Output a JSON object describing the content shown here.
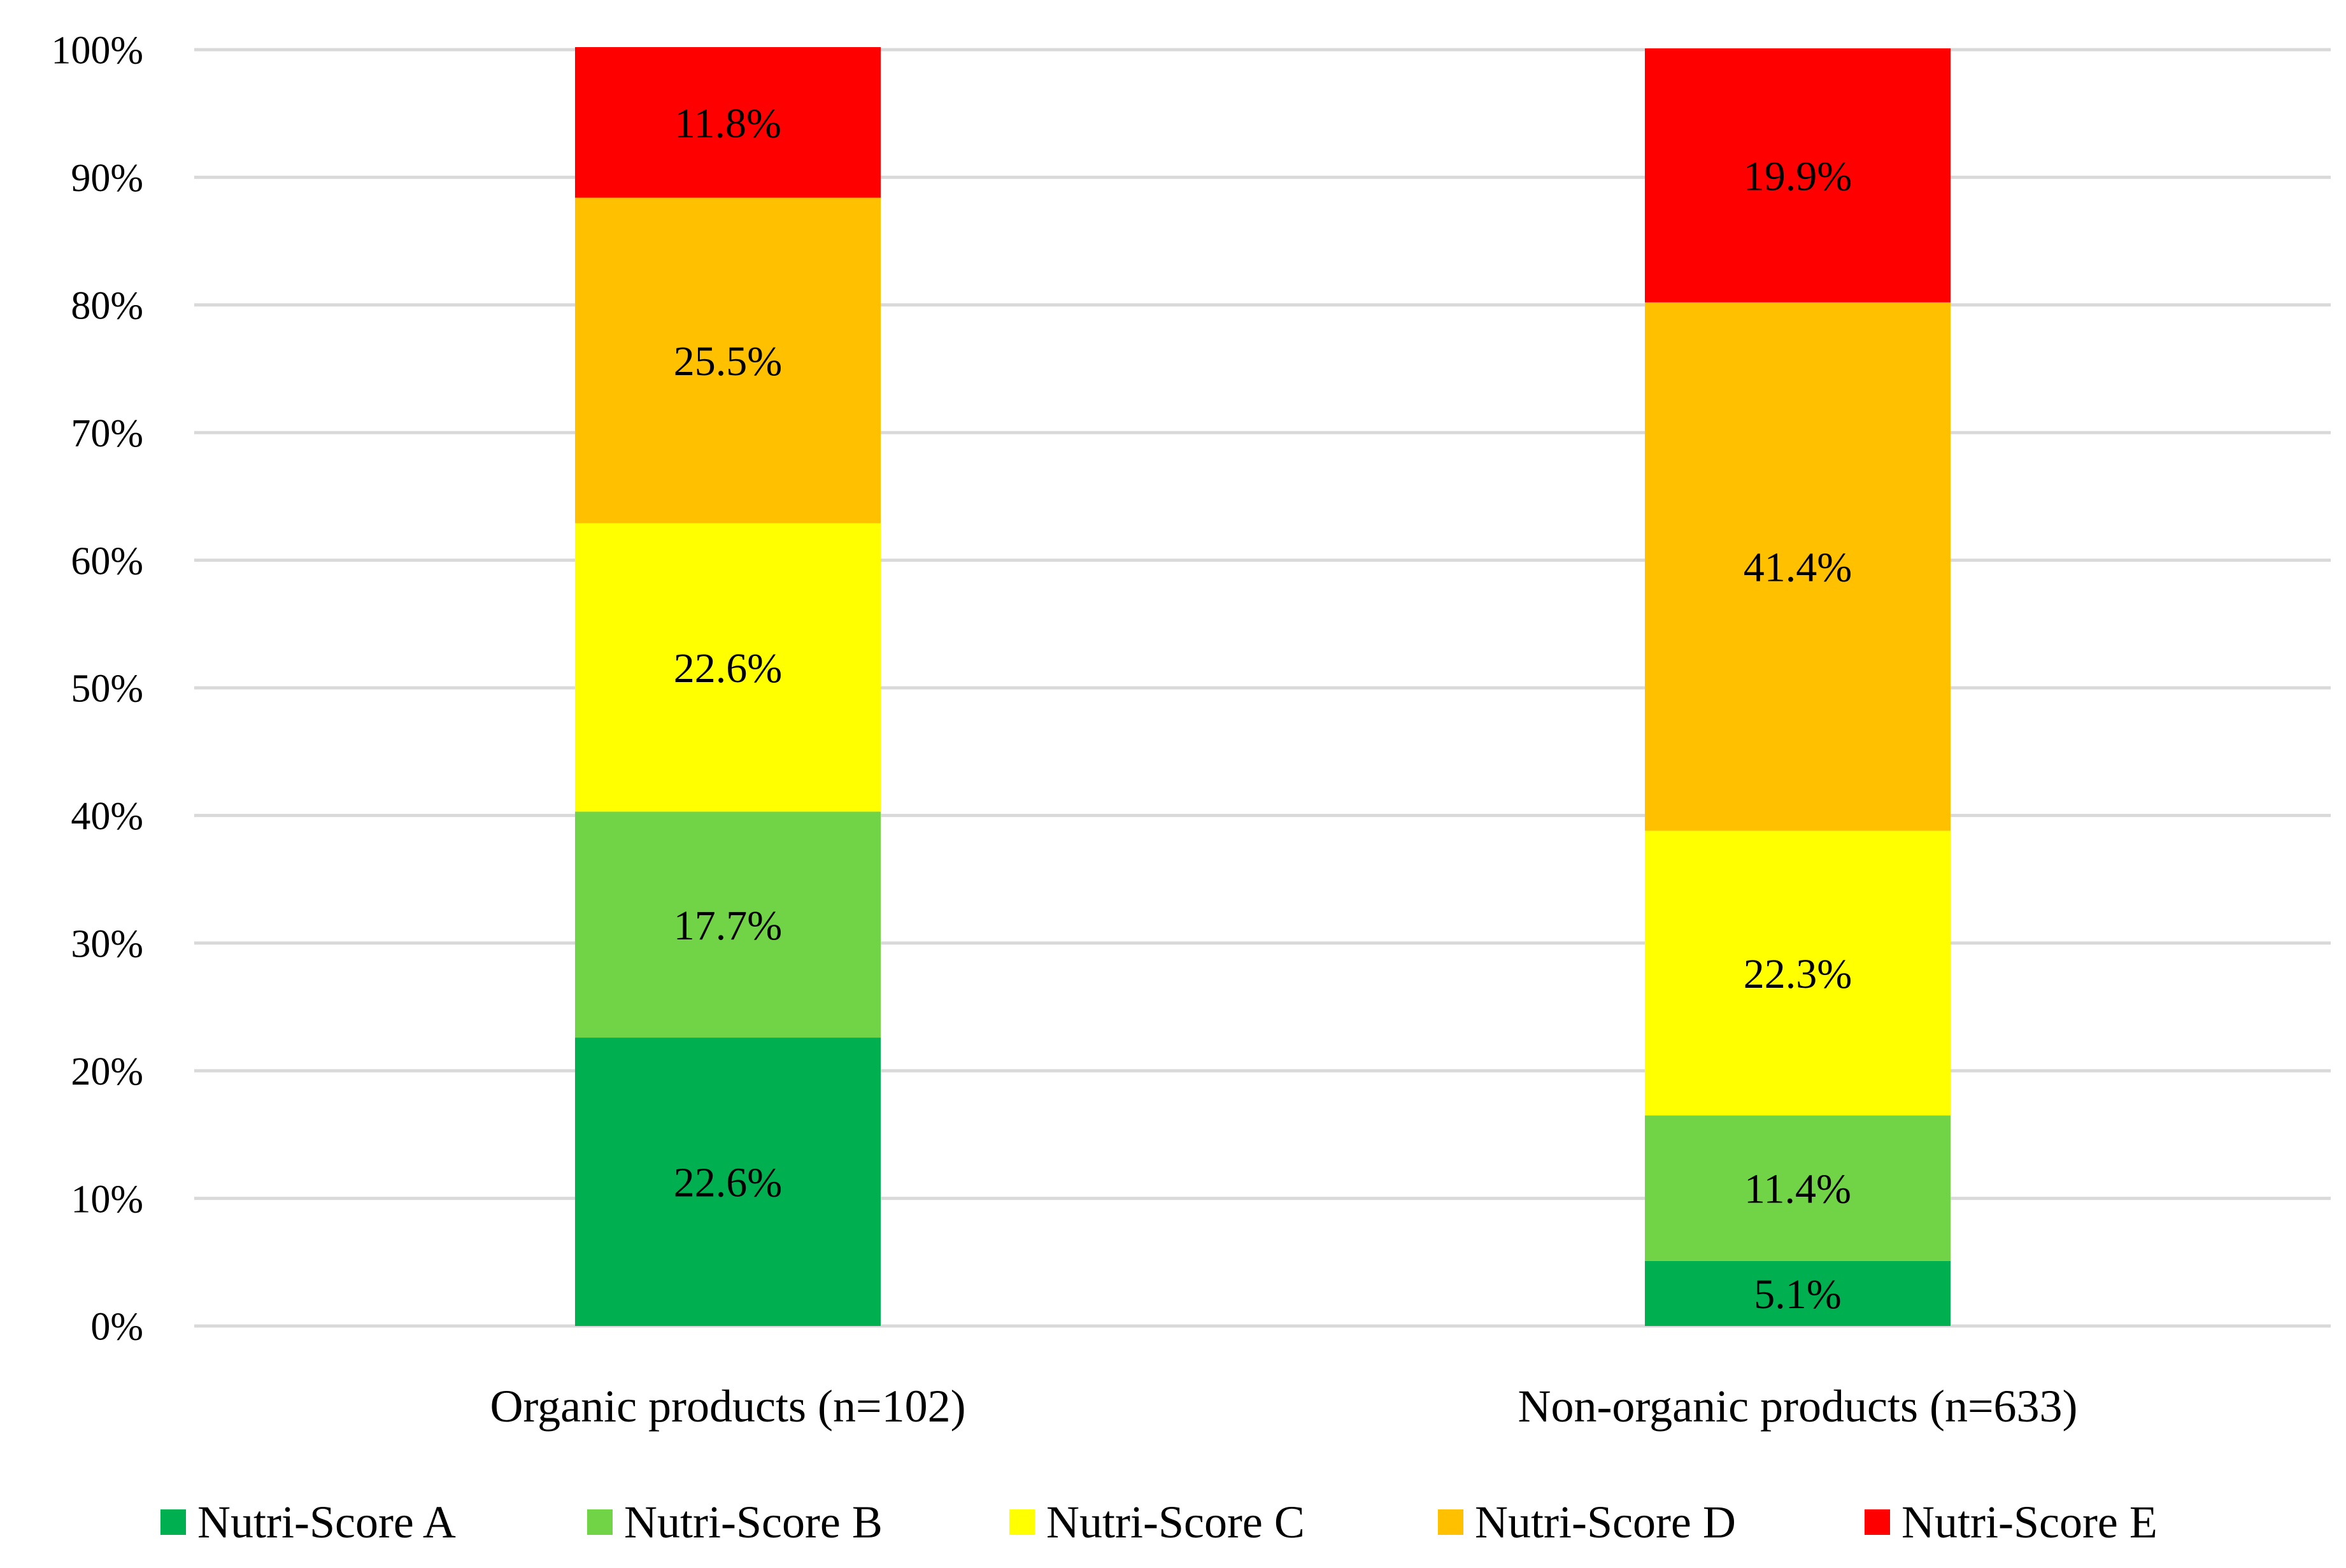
{
  "chart_data": {
    "type": "bar",
    "stacked": true,
    "title": "",
    "xlabel": "",
    "ylabel": "",
    "ylim": [
      0,
      100
    ],
    "yticks": [
      "0%",
      "10%",
      "20%",
      "30%",
      "40%",
      "50%",
      "60%",
      "70%",
      "80%",
      "90%",
      "100%"
    ],
    "grid": true,
    "legend_position": "bottom",
    "categories": [
      "Organic products (n=102)",
      "Non-organic products (n=633)"
    ],
    "series": [
      {
        "name": "Nutri-Score A",
        "color": "#00B050",
        "values": [
          22.6,
          5.1
        ],
        "labels": [
          "22.6%",
          "5.1%"
        ]
      },
      {
        "name": "Nutri-Score B",
        "color": "#70D446",
        "values": [
          17.7,
          11.4
        ],
        "labels": [
          "17.7%",
          "11.4%"
        ]
      },
      {
        "name": "Nutri-Score C",
        "color": "#FFFF00",
        "values": [
          22.6,
          22.3
        ],
        "labels": [
          "22.6%",
          "22.3%"
        ]
      },
      {
        "name": "Nutri-Score D",
        "color": "#FFC000",
        "values": [
          25.5,
          41.4
        ],
        "labels": [
          "25.5%",
          "41.4%"
        ]
      },
      {
        "name": "Nutri-Score E",
        "color": "#FF0000",
        "values": [
          11.8,
          19.9
        ],
        "labels": [
          "11.8%",
          "19.9%"
        ]
      }
    ]
  }
}
